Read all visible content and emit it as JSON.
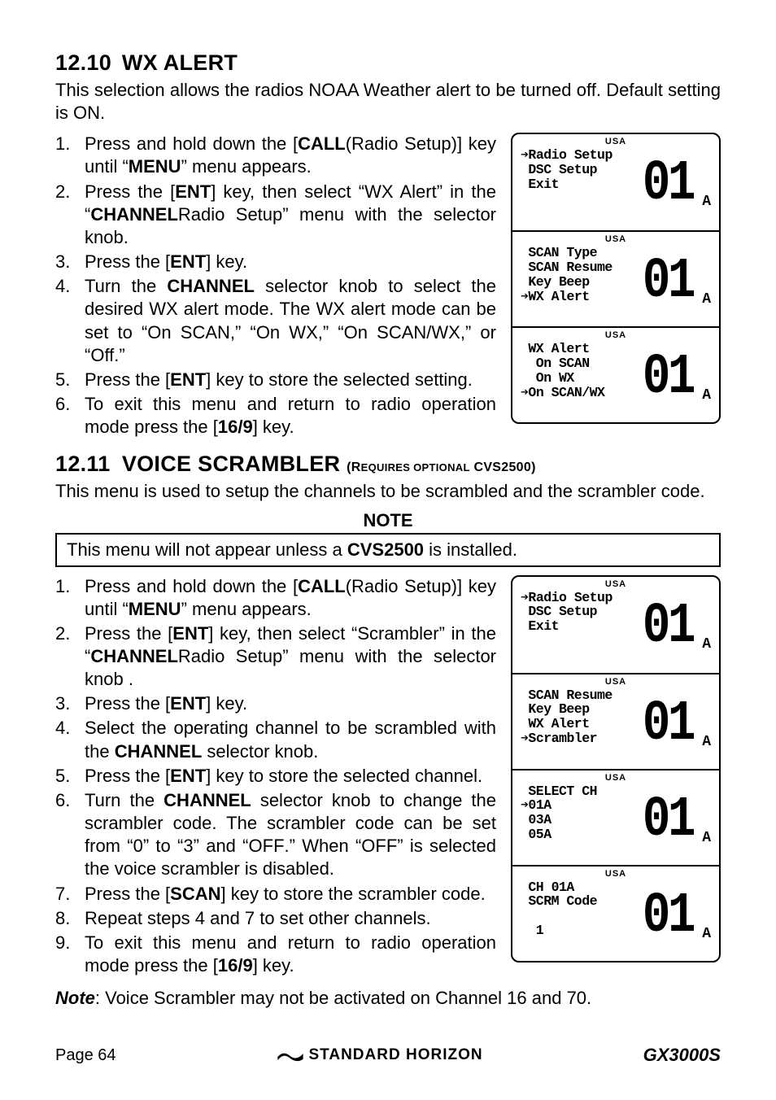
{
  "section1": {
    "number": "12.10",
    "title": "WX ALERT",
    "intro": "This selection allows the radios NOAA Weather alert to be turned off. Default setting is ON.",
    "steps": [
      {
        "n": "1.",
        "pre": "Press and hold down the [",
        "k1": "CALL",
        "mid1": "(",
        "k2": "MENU",
        "mid2": ")] key until “",
        "q1": "Radio Setup",
        "post": "” menu appears."
      },
      {
        "n": "2.",
        "pre": "Press the [",
        "k1": "ENT",
        "mid1": "] key, then select “",
        "q1": "WX Alert",
        "mid2": "” in the “",
        "q2": "Radio Setup",
        "mid3": "” menu with the ",
        "k2": "CHANNEL",
        "post": " selector knob."
      },
      {
        "n": "3.",
        "pre": "Press the [",
        "k1": "ENT",
        "post": "] key."
      },
      {
        "n": "4.",
        "pre": "Turn the ",
        "k1": "CHANNEL",
        "mid1": " selector knob to select the desired WX alert mode. The WX alert mode can be set to “",
        "q1": "On SCAN",
        "mid2": ",” “",
        "q2": "On WX",
        "mid3": ",” “",
        "q3": "On SCAN/WX",
        "mid4": ",” or “",
        "q4": "Off",
        "post": ".”"
      },
      {
        "n": "5.",
        "pre": "Press the [",
        "k1": "ENT",
        "post": "] key to store the selected setting."
      },
      {
        "n": "6.",
        "pre": "To exit this menu and return to radio operation mode press the [",
        "k1": "16/9",
        "post": "] key."
      }
    ],
    "lcd": [
      {
        "usa": "USA",
        "lines": "➔Radio Setup\n DSC Setup\n Exit",
        "d1": "0",
        "d2": "1",
        "suf": "A"
      },
      {
        "usa": "USA",
        "lines": " SCAN Type\n SCAN Resume\n Key Beep\n➔WX Alert",
        "d1": "0",
        "d2": "1",
        "suf": "A"
      },
      {
        "usa": "USA",
        "lines": " WX Alert\n  On SCAN\n  On WX\n➔On SCAN/WX",
        "d1": "0",
        "d2": "1",
        "suf": "A"
      }
    ]
  },
  "section2": {
    "number": "12.11",
    "title": "VOICE SCRAMBLER",
    "subtitle_pre": " (R",
    "subtitle_sc": "EQUIRES OPTIONAL",
    "subtitle_b": " CVS2500",
    "subtitle_post": ")",
    "intro": "This menu is used to setup the channels to be scrambled and the scrambler code.",
    "note_title": "NOTE",
    "note_pre": "This menu will not appear unless a ",
    "note_b": "CVS2500",
    "note_post": " is installed.",
    "steps": [
      {
        "n": "1.",
        "pre": "Press and hold down the [",
        "k1": "CALL",
        "mid1": "(",
        "k2": "MENU",
        "mid2": ")] key until “",
        "q1": "Radio Setup",
        "post": "” menu appears."
      },
      {
        "n": "2.",
        "pre": "Press the [",
        "k1": "ENT",
        "mid1": "] key, then select “",
        "q1": "Scrambler",
        "mid2": "” in the “",
        "q2": "Radio Setup",
        "mid3": "” menu with the ",
        "k2": "CHANNEL",
        "post": " selector knob ."
      },
      {
        "n": "3.",
        "pre": "Press the [",
        "k1": "ENT",
        "post": "] key."
      },
      {
        "n": "4.",
        "pre": "Select the operating channel to be scrambled with the ",
        "k1": "CHANNEL",
        "post": " selector knob."
      },
      {
        "n": "5.",
        "pre": "Press the [",
        "k1": "ENT",
        "post": "] key to store the selected channel."
      },
      {
        "n": "6.",
        "pre": "Turn the ",
        "k1": "CHANNEL",
        "mid1": " selector knob to change the scrambler code. The scrambler code can be set from “",
        "q1": "0",
        "mid2": "” to “",
        "q2": "3",
        "mid3": "” and “",
        "q3": "OFF",
        "mid4": ".” When “",
        "q4": "OFF",
        "post": "” is selected the voice scrambler is disabled."
      },
      {
        "n": "7.",
        "pre": "Press the [",
        "k1": "SCAN",
        "post": "] key to store the scrambler code."
      },
      {
        "n": "8.",
        "pre": "Repeat steps 4 and 7 to set other channels.",
        "post": ""
      },
      {
        "n": "9.",
        "pre": "To exit this menu and return to radio operation mode press the [",
        "k1": "16/9",
        "post": "] key."
      }
    ],
    "lcd": [
      {
        "usa": "USA",
        "lines": "➔Radio Setup\n DSC Setup\n Exit",
        "d1": "0",
        "d2": "1",
        "suf": "A"
      },
      {
        "usa": "USA",
        "lines": " SCAN Resume\n Key Beep\n WX Alert\n➔Scrambler",
        "d1": "0",
        "d2": "1",
        "suf": "A"
      },
      {
        "usa": "USA",
        "lines": " SELECT CH\n➔01A\n 03A\n 05A",
        "d1": "0",
        "d2": "1",
        "suf": "A"
      },
      {
        "usa": "USA",
        "lines": " CH 01A\n SCRM Code\n\n  1",
        "d1": "0",
        "d2": "1",
        "suf": "A"
      }
    ],
    "footnote_b": "Note",
    "footnote": ": Voice Scrambler may not be activated on Channel 16 and 70."
  },
  "footer": {
    "page": "Page 64",
    "logo": "STANDARD HORIZON",
    "model": "GX3000S"
  }
}
